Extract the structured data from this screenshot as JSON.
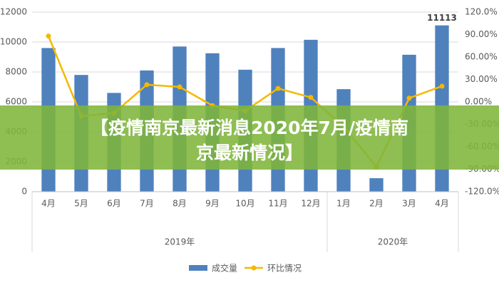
{
  "chart_data": {
    "type": "bar-line",
    "categories": [
      "4月",
      "5月",
      "6月",
      "7月",
      "8月",
      "9月",
      "10月",
      "11月",
      "12月",
      "1月",
      "2月",
      "3月",
      "4月"
    ],
    "groups": [
      {
        "label": "2019年",
        "count": 9
      },
      {
        "label": "2020年",
        "count": 4
      }
    ],
    "series": [
      {
        "name": "成交量",
        "type": "bar",
        "color": "#4f81bd",
        "values": [
          9600,
          7800,
          6600,
          8100,
          9700,
          9250,
          8150,
          9600,
          10150,
          6850,
          900,
          9150,
          11113
        ],
        "value_labels": [
          null,
          null,
          null,
          null,
          null,
          null,
          null,
          null,
          null,
          null,
          null,
          null,
          "11113"
        ]
      },
      {
        "name": "环比情况",
        "type": "line",
        "axis": "y2",
        "color": "#f5b800",
        "values": [
          88,
          -19,
          -15,
          23,
          20,
          -5,
          -12,
          18,
          6,
          -33,
          -87,
          5,
          21
        ]
      }
    ],
    "ylim": [
      0,
      12000
    ],
    "yticks": [
      0,
      2000,
      4000,
      6000,
      8000,
      10000,
      12000
    ],
    "y2lim": [
      -120,
      120
    ],
    "y2ticks": [
      {
        "value": -120,
        "label": "-120.0%"
      },
      {
        "value": -90,
        "label": "-90.00%"
      },
      {
        "value": -60,
        "label": "-60.00%"
      },
      {
        "value": -30,
        "label": "-30.00%"
      },
      {
        "value": 0,
        "label": "0.00%"
      },
      {
        "value": 30,
        "label": "30.00%"
      },
      {
        "value": 60,
        "label": "60.00%"
      },
      {
        "value": 90,
        "label": "90.00%"
      },
      {
        "value": 120,
        "label": "120.0%"
      }
    ],
    "grid": true,
    "legend": "bottom"
  },
  "banner": {
    "text_line1": "【疫情南京最新消息2020年7月/疫情南",
    "text_line2": "京最新情况】"
  }
}
